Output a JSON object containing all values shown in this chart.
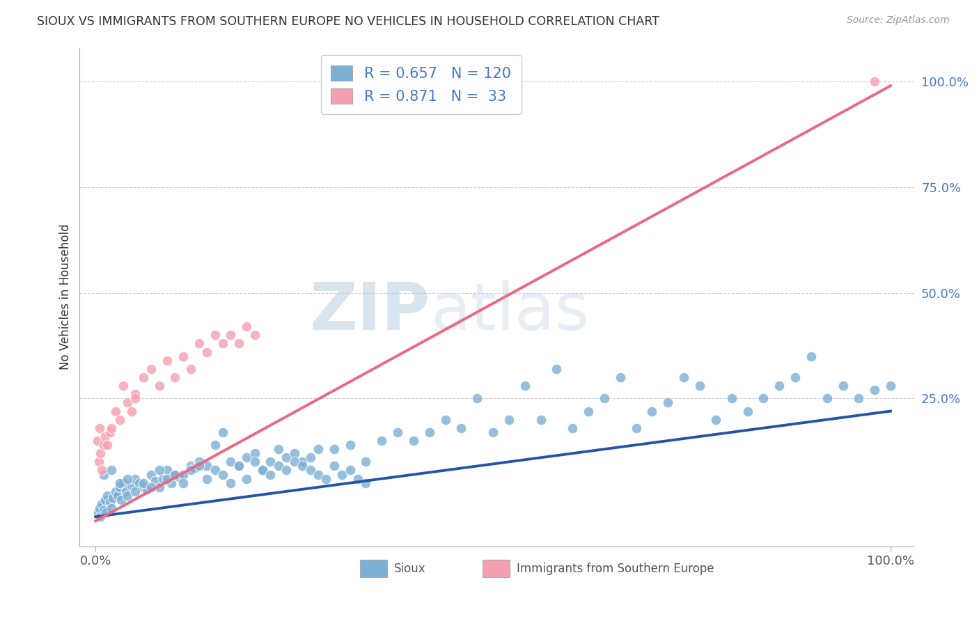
{
  "title": "SIOUX VS IMMIGRANTS FROM SOUTHERN EUROPE NO VEHICLES IN HOUSEHOLD CORRELATION CHART",
  "source": "Source: ZipAtlas.com",
  "ylabel": "No Vehicles in Household",
  "xlabel": "",
  "legend_R1": "R = 0.657",
  "legend_N1": "N = 120",
  "legend_R2": "R = 0.871",
  "legend_N2": "N =  33",
  "legend_label1": "Sioux",
  "legend_label2": "Immigrants from Southern Europe",
  "color_sioux": "#7BAFD4",
  "color_immig": "#F4A0B0",
  "line_color_sioux": "#2255AA",
  "line_color_immig": "#EE6680",
  "watermark_zip": "ZIP",
  "watermark_atlas": "atlas",
  "watermark_color": "#C5D8E8",
  "background_color": "#FFFFFF",
  "grid_color": "#DDDDEE",
  "sioux_line_m": 0.25,
  "sioux_line_b": -3.0,
  "immig_line_m": 1.03,
  "immig_line_b": -4.0,
  "sioux_x": [
    0.3,
    0.5,
    0.6,
    0.8,
    1.0,
    1.2,
    1.3,
    1.5,
    1.8,
    2.0,
    2.2,
    2.5,
    2.8,
    3.0,
    3.2,
    3.5,
    3.8,
    4.0,
    4.5,
    5.0,
    5.5,
    6.0,
    6.5,
    7.0,
    7.5,
    8.0,
    8.5,
    9.0,
    9.5,
    10.0,
    10.5,
    11.0,
    12.0,
    12.5,
    13.0,
    14.0,
    15.0,
    16.0,
    17.0,
    18.0,
    19.0,
    20.0,
    21.0,
    22.0,
    23.0,
    24.0,
    25.0,
    26.0,
    27.0,
    28.0,
    30.0,
    32.0,
    34.0,
    36.0,
    38.0,
    40.0,
    42.0,
    44.0,
    46.0,
    48.0,
    50.0,
    52.0,
    54.0,
    56.0,
    58.0,
    60.0,
    62.0,
    64.0,
    66.0,
    68.0,
    70.0,
    72.0,
    74.0,
    76.0,
    78.0,
    80.0,
    82.0,
    84.0,
    86.0,
    88.0,
    90.0,
    92.0,
    94.0,
    96.0,
    98.0,
    100.0,
    1.0,
    2.0,
    3.0,
    4.0,
    5.0,
    6.0,
    7.0,
    8.0,
    9.0,
    10.0,
    11.0,
    12.0,
    13.0,
    14.0,
    15.0,
    16.0,
    17.0,
    18.0,
    19.0,
    20.0,
    21.0,
    22.0,
    23.0,
    24.0,
    25.0,
    26.0,
    27.0,
    28.0,
    29.0,
    30.0,
    31.0,
    32.0,
    33.0,
    34.0
  ],
  "sioux_y": [
    -2.0,
    -1.0,
    -3.0,
    0.0,
    -1.5,
    1.0,
    -2.0,
    2.0,
    0.5,
    -1.0,
    1.5,
    3.0,
    2.0,
    4.0,
    1.0,
    5.0,
    3.0,
    2.0,
    4.5,
    6.0,
    5.0,
    4.0,
    3.5,
    7.0,
    5.5,
    4.0,
    6.0,
    8.0,
    5.0,
    7.0,
    6.5,
    7.0,
    9.0,
    8.5,
    10.0,
    9.0,
    14.0,
    17.0,
    10.0,
    9.0,
    11.0,
    12.0,
    8.0,
    10.0,
    13.0,
    11.0,
    12.0,
    10.0,
    11.0,
    13.0,
    13.0,
    14.0,
    10.0,
    15.0,
    17.0,
    15.0,
    17.0,
    20.0,
    18.0,
    25.0,
    17.0,
    20.0,
    28.0,
    20.0,
    32.0,
    18.0,
    22.0,
    25.0,
    30.0,
    18.0,
    22.0,
    24.0,
    30.0,
    28.0,
    20.0,
    25.0,
    22.0,
    25.0,
    28.0,
    30.0,
    35.0,
    25.0,
    28.0,
    25.0,
    27.0,
    28.0,
    7.0,
    8.0,
    5.0,
    6.0,
    3.0,
    5.0,
    4.0,
    8.0,
    6.0,
    7.0,
    5.0,
    8.0,
    9.0,
    6.0,
    8.0,
    7.0,
    5.0,
    9.0,
    6.0,
    10.0,
    8.0,
    7.0,
    9.0,
    8.0,
    10.0,
    9.0,
    8.0,
    7.0,
    6.0,
    9.0,
    7.0,
    8.0,
    6.0,
    5.0
  ],
  "immig_x": [
    0.2,
    0.4,
    0.5,
    0.6,
    0.8,
    1.0,
    1.2,
    1.5,
    1.8,
    2.0,
    2.5,
    3.0,
    3.5,
    4.0,
    4.5,
    5.0,
    6.0,
    7.0,
    8.0,
    9.0,
    10.0,
    11.0,
    12.0,
    13.0,
    14.0,
    15.0,
    16.0,
    17.0,
    18.0,
    19.0,
    20.0,
    98.0,
    5.0
  ],
  "immig_y": [
    15.0,
    10.0,
    18.0,
    12.0,
    8.0,
    14.0,
    16.0,
    14.0,
    17.0,
    18.0,
    22.0,
    20.0,
    28.0,
    24.0,
    22.0,
    26.0,
    30.0,
    32.0,
    28.0,
    34.0,
    30.0,
    35.0,
    32.0,
    38.0,
    36.0,
    40.0,
    38.0,
    40.0,
    38.0,
    42.0,
    40.0,
    100.0,
    25.0
  ]
}
